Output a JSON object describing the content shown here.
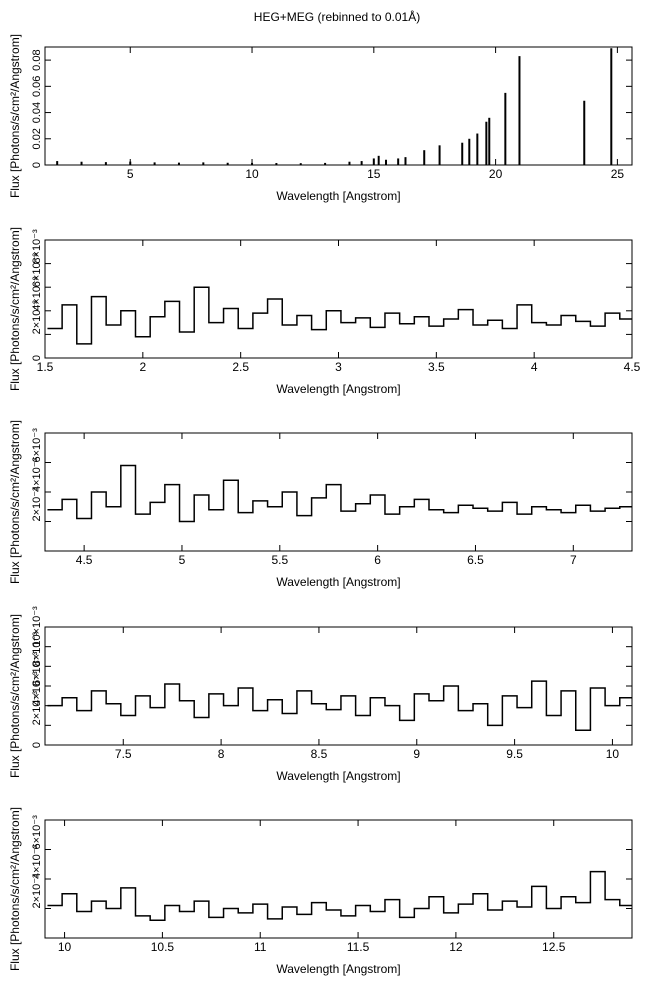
{
  "chart_data": [
    {
      "type": "spike",
      "title": "HEG+MEG (rebinned to 0.01Å)",
      "xlabel": "Wavelength [Angstrom]",
      "ylabel": "Flux [Photons/s/cm²/Angstrom]",
      "color": "#000000",
      "x": [
        2,
        3,
        4,
        5,
        6,
        7,
        8,
        9,
        10,
        11,
        12,
        13,
        14,
        14.5,
        15,
        15.2,
        15.5,
        16,
        16.3,
        17.07,
        17.7,
        18.63,
        18.92,
        19.25,
        19.62,
        19.74,
        20.4,
        20.98,
        23.64,
        24.75
      ],
      "values": [
        0.003,
        0.0025,
        0.0022,
        0.0026,
        0.002,
        0.0018,
        0.002,
        0.0017,
        0.0016,
        0.0015,
        0.0014,
        0.0016,
        0.0025,
        0.003,
        0.005,
        0.007,
        0.004,
        0.005,
        0.006,
        0.0113,
        0.015,
        0.017,
        0.02,
        0.024,
        0.033,
        0.036,
        0.055,
        0.083,
        0.049,
        0.089
      ],
      "xlim": [
        1.5,
        25.6
      ],
      "xticks": [
        5,
        10,
        15,
        20,
        25
      ],
      "ylim": [
        0,
        0.09
      ],
      "yticks": [
        0,
        0.02,
        0.04,
        0.06,
        0.08
      ]
    },
    {
      "type": "step",
      "xlabel": "Wavelength [Angstrom]",
      "ylabel": "Flux [Photons/s/cm²/Angstrom]",
      "color": "#000000",
      "x": [
        1.55,
        1.625,
        1.7,
        1.775,
        1.85,
        1.925,
        2,
        2.075,
        2.15,
        2.225,
        2.3,
        2.375,
        2.45,
        2.525,
        2.6,
        2.675,
        2.75,
        2.825,
        2.9,
        2.975,
        3.05,
        3.125,
        3.2,
        3.275,
        3.35,
        3.425,
        3.5,
        3.575,
        3.65,
        3.725,
        3.8,
        3.875,
        3.95,
        4.025,
        4.1,
        4.175,
        4.25,
        4.325,
        4.4,
        4.475
      ],
      "values": [
        0.0025,
        0.0045,
        0.0012,
        0.0052,
        0.0028,
        0.004,
        0.0018,
        0.0035,
        0.0048,
        0.0022,
        0.006,
        0.003,
        0.0042,
        0.0025,
        0.0038,
        0.005,
        0.0028,
        0.0036,
        0.0024,
        0.004,
        0.003,
        0.0034,
        0.0026,
        0.0038,
        0.0029,
        0.0035,
        0.0027,
        0.0033,
        0.0041,
        0.0028,
        0.0032,
        0.0025,
        0.0045,
        0.003,
        0.0028,
        0.0036,
        0.0031,
        0.0027,
        0.0038,
        0.0033
      ],
      "xlim": [
        1.5,
        4.5
      ],
      "xticks": [
        1.5,
        2,
        2.5,
        3,
        3.5,
        4,
        4.5
      ],
      "ylim": [
        0,
        0.01
      ],
      "yticks": [
        0,
        {
          "value": 0.002,
          "label": "2×10⁻³"
        },
        {
          "value": 0.004,
          "label": "4×10⁻³"
        },
        {
          "value": 0.006,
          "label": "6×10⁻³"
        },
        {
          "value": 0.008,
          "label": "8×10⁻³"
        }
      ]
    },
    {
      "type": "step",
      "xlabel": "Wavelength [Angstrom]",
      "ylabel": "Flux [Photons/s/cm²/Angstrom]",
      "color": "#000000",
      "x": [
        4.35,
        4.425,
        4.5,
        4.575,
        4.65,
        4.725,
        4.8,
        4.875,
        4.95,
        5.025,
        5.1,
        5.175,
        5.25,
        5.325,
        5.4,
        5.475,
        5.55,
        5.625,
        5.7,
        5.775,
        5.85,
        5.925,
        6,
        6.075,
        6.15,
        6.225,
        6.3,
        6.375,
        6.45,
        6.525,
        6.6,
        6.675,
        6.75,
        6.825,
        6.9,
        6.975,
        7.05,
        7.125,
        7.2,
        7.275
      ],
      "values": [
        0.0028,
        0.0035,
        0.0022,
        0.004,
        0.003,
        0.0058,
        0.0025,
        0.0033,
        0.0045,
        0.002,
        0.0038,
        0.0028,
        0.0048,
        0.0026,
        0.0034,
        0.003,
        0.004,
        0.0024,
        0.0036,
        0.0045,
        0.0027,
        0.0032,
        0.0038,
        0.0025,
        0.003,
        0.0035,
        0.0028,
        0.0026,
        0.0031,
        0.0029,
        0.0027,
        0.0033,
        0.0025,
        0.003,
        0.0028,
        0.0026,
        0.0031,
        0.0027,
        0.0029,
        0.003
      ],
      "xlim": [
        4.3,
        7.3
      ],
      "xticks": [
        4.5,
        5,
        5.5,
        6,
        6.5,
        7
      ],
      "ylim": [
        0,
        0.008
      ],
      "yticks": [
        {
          "value": 0.002,
          "label": "2×10⁻³"
        },
        {
          "value": 0.004,
          "label": "4×10⁻³"
        },
        {
          "value": 0.006,
          "label": "6×10⁻³"
        }
      ]
    },
    {
      "type": "step",
      "xlabel": "Wavelength [Angstrom]",
      "ylabel": "Flux [Photons/s/cm²/Angstrom]",
      "color": "#000000",
      "x": [
        7.15,
        7.225,
        7.3,
        7.375,
        7.45,
        7.525,
        7.6,
        7.675,
        7.75,
        7.825,
        7.9,
        7.975,
        8.05,
        8.125,
        8.2,
        8.275,
        8.35,
        8.425,
        8.5,
        8.575,
        8.65,
        8.725,
        8.8,
        8.875,
        8.95,
        9.025,
        9.1,
        9.175,
        9.25,
        9.325,
        9.4,
        9.475,
        9.55,
        9.625,
        9.7,
        9.775,
        9.85,
        9.925,
        10,
        10.075
      ],
      "values": [
        0.004,
        0.0048,
        0.0035,
        0.0055,
        0.0042,
        0.003,
        0.005,
        0.0038,
        0.0062,
        0.0045,
        0.0028,
        0.0052,
        0.004,
        0.0058,
        0.0035,
        0.0046,
        0.0032,
        0.0055,
        0.0042,
        0.0036,
        0.005,
        0.003,
        0.0048,
        0.004,
        0.0025,
        0.0052,
        0.0045,
        0.006,
        0.0035,
        0.0042,
        0.002,
        0.005,
        0.0038,
        0.0065,
        0.003,
        0.0055,
        0.0015,
        0.0058,
        0.004,
        0.0048
      ],
      "xlim": [
        7.1,
        10.1
      ],
      "xticks": [
        7.5,
        8,
        8.5,
        9,
        9.5,
        10
      ],
      "ylim": [
        0,
        0.012
      ],
      "yticks": [
        0,
        {
          "value": 0.002,
          "label": "2×10⁻³"
        },
        {
          "value": 0.004,
          "label": "4×10⁻³"
        },
        {
          "value": 0.006,
          "label": "6×10⁻³"
        },
        {
          "value": 0.008,
          "label": "8×10⁻³"
        },
        {
          "value": 0.01,
          "label": "10×10⁻³"
        }
      ]
    },
    {
      "type": "step",
      "xlabel": "Wavelength [Angstrom]",
      "ylabel": "Flux [Photons/s/cm²/Angstrom]",
      "color": "#000000",
      "x": [
        9.95,
        10.025,
        10.1,
        10.175,
        10.25,
        10.325,
        10.4,
        10.475,
        10.55,
        10.625,
        10.7,
        10.775,
        10.85,
        10.925,
        11,
        11.075,
        11.15,
        11.225,
        11.3,
        11.375,
        11.45,
        11.525,
        11.6,
        11.675,
        11.75,
        11.825,
        11.9,
        11.975,
        12.05,
        12.125,
        12.2,
        12.275,
        12.35,
        12.425,
        12.5,
        12.575,
        12.65,
        12.725,
        12.8,
        12.875
      ],
      "values": [
        0.0022,
        0.003,
        0.0018,
        0.0025,
        0.002,
        0.0034,
        0.0015,
        0.0012,
        0.0022,
        0.0018,
        0.0025,
        0.0014,
        0.002,
        0.0017,
        0.0023,
        0.0013,
        0.0021,
        0.0016,
        0.0024,
        0.0019,
        0.0015,
        0.0022,
        0.0018,
        0.0026,
        0.0014,
        0.002,
        0.0028,
        0.0017,
        0.0023,
        0.003,
        0.0019,
        0.0025,
        0.0021,
        0.0035,
        0.002,
        0.0028,
        0.0024,
        0.0045,
        0.0026,
        0.0022
      ],
      "xlim": [
        9.9,
        12.9
      ],
      "xticks": [
        10,
        10.5,
        11,
        11.5,
        12,
        12.5
      ],
      "ylim": [
        0,
        0.008
      ],
      "yticks": [
        {
          "value": 0.002,
          "label": "2×10⁻³"
        },
        {
          "value": 0.004,
          "label": "4×10⁻³"
        },
        {
          "value": 0.006,
          "label": "6×10⁻³"
        }
      ]
    }
  ]
}
